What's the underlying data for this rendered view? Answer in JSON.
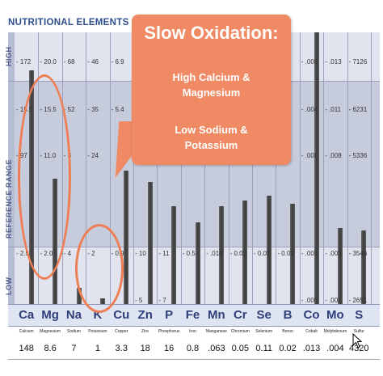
{
  "header": "NUTRITIONAL ELEMENTS",
  "side_labels": {
    "high": "HIGH",
    "reference": "REFERENCE RANGE",
    "low": "LOW"
  },
  "callout": {
    "title": "Slow Oxidation:",
    "line1a": "High Calcium &",
    "line1b": "Magnesium",
    "line2a": "Low Sodium &",
    "line2b": "Potassium"
  },
  "elements": [
    {
      "symbol": "Ca",
      "name": "Calcium",
      "value": "148",
      "ticks": [
        "172",
        "15.5",
        "97",
        "2.5"
      ]
    },
    {
      "symbol": "Mg",
      "name": "Magnesium",
      "value": "8.6",
      "ticks": [
        "20.0",
        "15.5",
        "11.0",
        "2.0"
      ]
    },
    {
      "symbol": "Na",
      "name": "Sodium",
      "value": "7",
      "ticks": [
        "68",
        "52",
        "3",
        "4"
      ]
    },
    {
      "symbol": "K",
      "name": "Potassium",
      "value": "1",
      "ticks": [
        "46",
        "35",
        "24",
        "2"
      ]
    },
    {
      "symbol": "Cu",
      "name": "Copper",
      "value": "3.3",
      "ticks": [
        "6.9",
        "5.4",
        "",
        "0.9"
      ]
    },
    {
      "symbol": "Zn",
      "name": "Zinc",
      "value": "18",
      "ticks": [
        "",
        "",
        "",
        "10",
        "5"
      ]
    },
    {
      "symbol": "P",
      "name": "Phosphorus",
      "value": "16",
      "ticks": [
        "",
        "",
        "",
        "11",
        "7"
      ]
    },
    {
      "symbol": "Fe",
      "name": "Iron",
      "value": "0.8",
      "ticks": [
        "",
        "",
        "",
        "0.5"
      ]
    },
    {
      "symbol": "Mn",
      "name": "Manganese",
      "value": ".063",
      "ticks": [
        "",
        "",
        "",
        ".010"
      ]
    },
    {
      "symbol": "Cr",
      "name": "Chromium",
      "value": "0.05",
      "ticks": [
        "",
        "",
        "",
        "0.02"
      ]
    },
    {
      "symbol": "Se",
      "name": "Selenium",
      "value": "0.11",
      "ticks": [
        "",
        "",
        "",
        "0.03"
      ]
    },
    {
      "symbol": "B",
      "name": "Boron",
      "value": "0.02",
      "ticks": [
        "",
        "",
        "",
        "0.02"
      ]
    },
    {
      "symbol": "Co",
      "name": "Cobalt",
      "value": ".013",
      "ticks": [
        ".005",
        ".004",
        ".003",
        ".001",
        ".000"
      ]
    },
    {
      "symbol": "Mo",
      "name": "Molybdenum",
      "value": ".004",
      "ticks": [
        ".013",
        ".011",
        ".008",
        ".003",
        ".001"
      ]
    },
    {
      "symbol": "S",
      "name": "Sulfur",
      "value": "4320",
      "ticks": [
        "7126",
        "6231",
        "5336",
        "3546",
        "2651"
      ]
    }
  ],
  "bar_levels": [
    0.86,
    0.46,
    0.06,
    0.02,
    0.49,
    0.45,
    0.36,
    0.3,
    0.36,
    0.38,
    0.4,
    0.37,
    1.0,
    0.28,
    0.27
  ]
}
